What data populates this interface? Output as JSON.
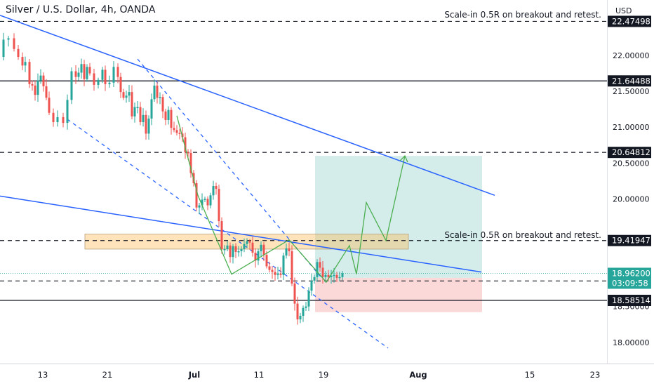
{
  "header": {
    "title": "Silver / U.S. Dollar, 4h, OANDA",
    "currency": "USD"
  },
  "chart_data": {
    "type": "candlestick",
    "x_labels": [
      "13",
      "21",
      "Jul",
      "11",
      "19",
      "Aug",
      "15",
      "23"
    ],
    "y_ticks": [
      18.0,
      18.5,
      19.0,
      19.5,
      20.0,
      20.5,
      21.0,
      21.5,
      22.0
    ],
    "y_tick_labels": [
      "18.00000",
      "18.50000",
      "19.00000",
      "19.50000",
      "20.00000",
      "20.50000",
      "21.00000",
      "21.50000",
      "22.00000"
    ],
    "hidden_tick_label": "19.50000",
    "ylim": [
      17.7,
      22.7
    ],
    "colors": {
      "up": "#26a69a",
      "down": "#ef5350",
      "trend": "#2962ff",
      "projection": "#4caf50",
      "zone": "#ffb74d",
      "target_zone": "#26a69a",
      "stop_zone": "#ef5350"
    },
    "price_lines": [
      {
        "price": 22.47498,
        "label": "22.47498",
        "style": "dashed"
      },
      {
        "price": 21.64488,
        "label": "21.64488",
        "style": "solid"
      },
      {
        "price": 20.64812,
        "label": "20.64812",
        "style": "dashed"
      },
      {
        "price": 19.41947,
        "label": "19.41947",
        "style": "dashed"
      },
      {
        "price": 18.85624,
        "label": "18.85624",
        "style": "dashed"
      },
      {
        "price": 18.58514,
        "label": "18.58514",
        "style": "solid"
      }
    ],
    "current_price": {
      "price": "18.96200",
      "countdown": "03:09:58"
    },
    "annotations": [
      "Scale-in 0.5R on breakout and retest.",
      "Scale-in 0.5R on breakout and retest."
    ],
    "price_path": [
      [
        1,
        21.98
      ],
      [
        5,
        22.22
      ],
      [
        12,
        22.24
      ],
      [
        20,
        22.09
      ],
      [
        26,
        21.98
      ],
      [
        32,
        21.86
      ],
      [
        36,
        21.91
      ],
      [
        42,
        21.6
      ],
      [
        46,
        21.58
      ],
      [
        50,
        21.45
      ],
      [
        54,
        21.65
      ],
      [
        58,
        21.72
      ],
      [
        62,
        21.57
      ],
      [
        66,
        21.41
      ],
      [
        70,
        21.2
      ],
      [
        76,
        21.07
      ],
      [
        82,
        21.14
      ],
      [
        90,
        21.06
      ],
      [
        96,
        21.38
      ],
      [
        102,
        21.78
      ],
      [
        108,
        21.7
      ],
      [
        112,
        21.76
      ],
      [
        116,
        21.88
      ],
      [
        120,
        21.67
      ],
      [
        124,
        21.84
      ],
      [
        128,
        21.75
      ],
      [
        134,
        21.59
      ],
      [
        140,
        21.66
      ],
      [
        146,
        21.8
      ],
      [
        150,
        21.6
      ],
      [
        156,
        21.62
      ],
      [
        162,
        21.84
      ],
      [
        168,
        21.7
      ],
      [
        172,
        21.49
      ],
      [
        176,
        21.41
      ],
      [
        180,
        21.44
      ],
      [
        184,
        21.49
      ],
      [
        188,
        21.15
      ],
      [
        192,
        21.28
      ],
      [
        196,
        21.28
      ],
      [
        200,
        21.07
      ],
      [
        204,
        21.17
      ],
      [
        208,
        20.91
      ],
      [
        212,
        21.12
      ],
      [
        216,
        21.39
      ],
      [
        220,
        21.58
      ],
      [
        224,
        21.41
      ],
      [
        228,
        21.42
      ],
      [
        232,
        21.22
      ],
      [
        236,
        21.1
      ],
      [
        240,
        21.24
      ],
      [
        244,
        20.99
      ],
      [
        248,
        20.96
      ],
      [
        252,
        20.92
      ],
      [
        256,
        20.91
      ],
      [
        260,
        20.86
      ],
      [
        264,
        20.65
      ],
      [
        268,
        20.64
      ],
      [
        272,
        20.36
      ],
      [
        276,
        20.22
      ],
      [
        280,
        19.88
      ],
      [
        284,
        19.91
      ],
      [
        288,
        19.99
      ],
      [
        292,
        20.0
      ],
      [
        296,
        19.91
      ],
      [
        300,
        20.05
      ],
      [
        304,
        20.18
      ],
      [
        308,
        20.14
      ],
      [
        312,
        19.69
      ],
      [
        316,
        19.3
      ],
      [
        320,
        19.3
      ],
      [
        324,
        19.35
      ],
      [
        328,
        19.19
      ],
      [
        332,
        19.34
      ],
      [
        336,
        19.26
      ],
      [
        340,
        19.27
      ],
      [
        344,
        19.3
      ],
      [
        348,
        19.37
      ],
      [
        352,
        19.41
      ],
      [
        356,
        19.39
      ],
      [
        360,
        19.25
      ],
      [
        364,
        19.14
      ],
      [
        368,
        19.27
      ],
      [
        372,
        19.36
      ],
      [
        376,
        19.22
      ],
      [
        380,
        19.06
      ],
      [
        384,
        19.01
      ],
      [
        388,
        18.98
      ],
      [
        392,
        18.94
      ],
      [
        396,
        18.96
      ],
      [
        400,
        18.94
      ],
      [
        404,
        19.21
      ],
      [
        408,
        19.31
      ],
      [
        412,
        19.27
      ],
      [
        416,
        18.82
      ],
      [
        420,
        18.54
      ],
      [
        424,
        18.32
      ],
      [
        428,
        18.37
      ],
      [
        432,
        18.48
      ],
      [
        436,
        18.5
      ],
      [
        440,
        18.72
      ],
      [
        444,
        18.86
      ],
      [
        448,
        18.91
      ],
      [
        452,
        19.12
      ],
      [
        456,
        19.04
      ],
      [
        460,
        18.91
      ],
      [
        464,
        18.94
      ],
      [
        468,
        18.91
      ],
      [
        472,
        18.93
      ],
      [
        476,
        18.94
      ],
      [
        480,
        18.9
      ],
      [
        484,
        18.91
      ],
      [
        488,
        18.962
      ]
    ]
  }
}
